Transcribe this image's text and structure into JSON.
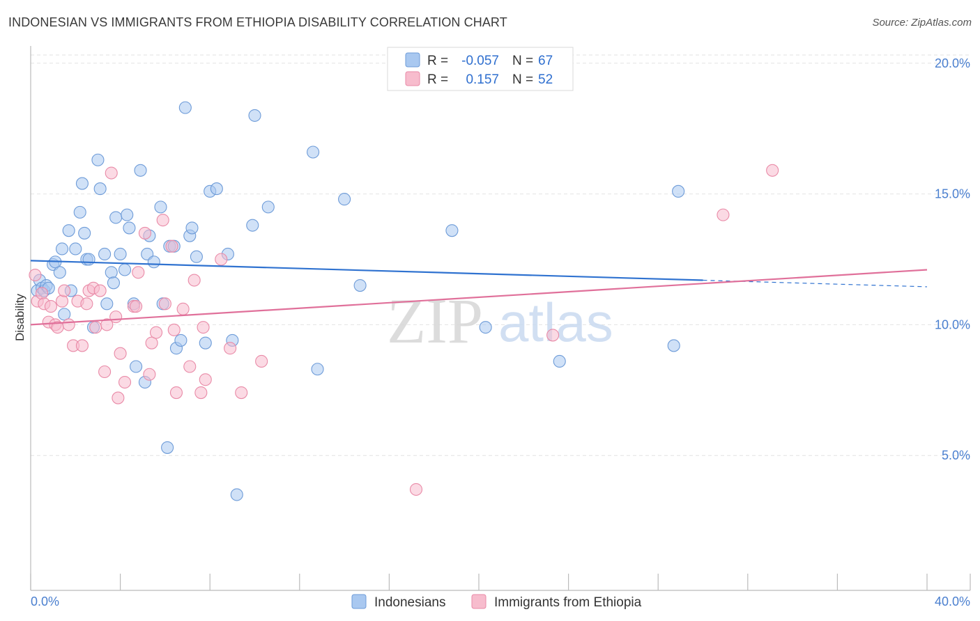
{
  "title": "INDONESIAN VS IMMIGRANTS FROM ETHIOPIA DISABILITY CORRELATION CHART",
  "source": "Source: ZipAtlas.com",
  "watermark": {
    "zip": "ZIP",
    "atlas": "atlas"
  },
  "chart_data": {
    "type": "scatter",
    "ylabel": "Disability",
    "xlabel": "",
    "xlim": [
      0,
      40
    ],
    "ylim": [
      0,
      20.5
    ],
    "x_tick_labels": {
      "min": "0.0%",
      "max": "40.0%"
    },
    "y_ticks": [
      5,
      10,
      15,
      20
    ],
    "y_tick_labels": [
      "5.0%",
      "10.0%",
      "15.0%",
      "20.0%"
    ],
    "x_minor_ticks": [
      0,
      4,
      8,
      12,
      16,
      20,
      24,
      28,
      32,
      36,
      40
    ],
    "legend": {
      "r_label": "R =",
      "n_label": "N =",
      "entries": [
        {
          "name": "Indonesians",
          "r": "-0.057",
          "n": "67"
        },
        {
          "name": "Immigrants from Ethiopia",
          "r": "0.157",
          "n": "52"
        }
      ]
    },
    "colors": {
      "indonesians_fill": "#a9c8f0",
      "indonesians_stroke": "#6d9bd8",
      "indonesians_line": "#2f72d0",
      "ethiopia_fill": "#f7bccd",
      "ethiopia_stroke": "#e98aa7",
      "ethiopia_line": "#e0709a",
      "grid": "#e2e2e2",
      "axis_label": "#4a7fcf"
    },
    "series": [
      {
        "name": "Indonesians",
        "trend": {
          "x0": 0,
          "y0": 12.45,
          "x1": 30,
          "y1": 11.7,
          "dash_to_x": 40,
          "dash_to_y": 11.45
        },
        "points": [
          [
            0.3,
            11.3
          ],
          [
            0.4,
            11.7
          ],
          [
            0.5,
            11.4
          ],
          [
            0.6,
            11.3
          ],
          [
            0.7,
            11.5
          ],
          [
            0.8,
            11.4
          ],
          [
            1.0,
            12.3
          ],
          [
            1.1,
            12.4
          ],
          [
            1.3,
            12.0
          ],
          [
            1.4,
            12.9
          ],
          [
            1.5,
            10.4
          ],
          [
            1.7,
            13.6
          ],
          [
            1.8,
            11.3
          ],
          [
            2.0,
            12.9
          ],
          [
            2.2,
            14.3
          ],
          [
            2.3,
            15.4
          ],
          [
            2.4,
            13.5
          ],
          [
            2.5,
            12.5
          ],
          [
            2.6,
            12.5
          ],
          [
            2.8,
            9.9
          ],
          [
            3.0,
            16.3
          ],
          [
            3.1,
            15.2
          ],
          [
            3.3,
            12.7
          ],
          [
            3.4,
            10.8
          ],
          [
            3.6,
            12.0
          ],
          [
            3.7,
            11.6
          ],
          [
            3.8,
            14.1
          ],
          [
            4.0,
            12.7
          ],
          [
            4.2,
            12.1
          ],
          [
            4.3,
            14.2
          ],
          [
            4.4,
            13.7
          ],
          [
            4.6,
            10.8
          ],
          [
            4.7,
            8.4
          ],
          [
            4.9,
            15.9
          ],
          [
            5.1,
            7.8
          ],
          [
            5.2,
            12.7
          ],
          [
            5.3,
            13.4
          ],
          [
            5.5,
            12.4
          ],
          [
            5.8,
            14.5
          ],
          [
            5.9,
            10.8
          ],
          [
            6.1,
            5.3
          ],
          [
            6.2,
            13.0
          ],
          [
            6.4,
            13.0
          ],
          [
            6.5,
            9.1
          ],
          [
            6.7,
            9.4
          ],
          [
            6.9,
            18.3
          ],
          [
            7.1,
            13.4
          ],
          [
            7.2,
            13.7
          ],
          [
            7.4,
            12.6
          ],
          [
            7.8,
            9.3
          ],
          [
            8.0,
            15.1
          ],
          [
            8.3,
            15.2
          ],
          [
            8.8,
            12.7
          ],
          [
            9.0,
            9.4
          ],
          [
            9.2,
            3.5
          ],
          [
            9.9,
            13.8
          ],
          [
            10.0,
            18.0
          ],
          [
            10.6,
            14.5
          ],
          [
            12.6,
            16.6
          ],
          [
            12.8,
            8.3
          ],
          [
            14.0,
            14.8
          ],
          [
            14.7,
            11.5
          ],
          [
            18.8,
            13.6
          ],
          [
            20.3,
            9.9
          ],
          [
            23.6,
            8.6
          ],
          [
            28.7,
            9.2
          ],
          [
            28.9,
            15.1
          ]
        ]
      },
      {
        "name": "Immigrants from Ethiopia",
        "trend": {
          "x0": 0,
          "y0": 10.0,
          "x1": 40,
          "y1": 12.1
        },
        "points": [
          [
            0.2,
            11.9
          ],
          [
            0.3,
            10.9
          ],
          [
            0.5,
            11.2
          ],
          [
            0.6,
            10.8
          ],
          [
            0.8,
            10.1
          ],
          [
            0.9,
            10.7
          ],
          [
            1.1,
            10.0
          ],
          [
            1.2,
            9.9
          ],
          [
            1.4,
            10.9
          ],
          [
            1.5,
            11.3
          ],
          [
            1.7,
            10.0
          ],
          [
            1.9,
            9.2
          ],
          [
            2.1,
            10.9
          ],
          [
            2.3,
            9.2
          ],
          [
            2.5,
            10.8
          ],
          [
            2.6,
            11.3
          ],
          [
            2.8,
            11.4
          ],
          [
            2.9,
            9.9
          ],
          [
            3.1,
            11.3
          ],
          [
            3.3,
            8.2
          ],
          [
            3.4,
            10.0
          ],
          [
            3.6,
            15.8
          ],
          [
            3.8,
            10.3
          ],
          [
            3.9,
            7.2
          ],
          [
            4.0,
            8.9
          ],
          [
            4.2,
            7.8
          ],
          [
            4.6,
            10.7
          ],
          [
            4.7,
            10.7
          ],
          [
            4.8,
            12.0
          ],
          [
            5.1,
            13.5
          ],
          [
            5.3,
            8.1
          ],
          [
            5.4,
            9.3
          ],
          [
            5.6,
            9.7
          ],
          [
            5.9,
            14.0
          ],
          [
            6.0,
            10.8
          ],
          [
            6.3,
            13.0
          ],
          [
            6.4,
            9.8
          ],
          [
            6.5,
            7.4
          ],
          [
            6.8,
            10.6
          ],
          [
            7.1,
            8.4
          ],
          [
            7.3,
            11.7
          ],
          [
            7.6,
            7.4
          ],
          [
            7.7,
            9.9
          ],
          [
            7.8,
            7.9
          ],
          [
            8.5,
            12.5
          ],
          [
            8.9,
            9.1
          ],
          [
            9.4,
            7.4
          ],
          [
            10.3,
            8.6
          ],
          [
            17.2,
            3.7
          ],
          [
            23.3,
            9.6
          ],
          [
            30.9,
            14.2
          ],
          [
            33.1,
            15.9
          ]
        ]
      }
    ]
  }
}
